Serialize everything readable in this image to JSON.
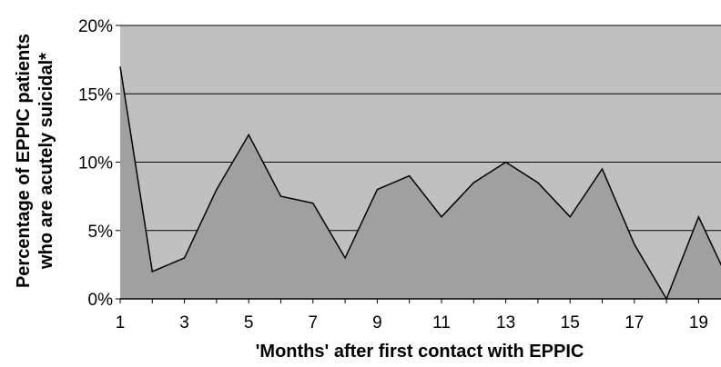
{
  "chart_data": {
    "type": "area",
    "title": "",
    "xlabel": "'Months' after first contact with EPPIC",
    "ylabel_line1": "Percentage of EPPIC patients",
    "ylabel_line2": "who are acutely suicidal*",
    "x": [
      1,
      2,
      3,
      4,
      5,
      6,
      7,
      8,
      9,
      10,
      11,
      12,
      13,
      14,
      15,
      16,
      17,
      18,
      19,
      20
    ],
    "values": [
      17,
      2,
      3,
      8,
      12,
      7.5,
      7,
      3,
      8,
      9,
      6,
      8.5,
      10,
      8.5,
      6,
      9.5,
      4,
      0,
      6,
      1
    ],
    "xlim": [
      1,
      20
    ],
    "ylim": [
      0,
      20
    ],
    "y_ticks": [
      0,
      5,
      10,
      15,
      20
    ],
    "y_tick_labels": [
      "0%",
      "5%",
      "10%",
      "15%",
      "20%"
    ],
    "x_tick_labels": [
      "1",
      "3",
      "5",
      "7",
      "9",
      "11",
      "13",
      "15",
      "17",
      "19"
    ],
    "x_tick_values": [
      1,
      3,
      5,
      7,
      9,
      11,
      13,
      15,
      17,
      19
    ],
    "grid": true,
    "legend": "none",
    "colors": {
      "plot_background": "#c0c0c0",
      "area_fill": "#a0a0a0",
      "line": "#000000",
      "grid": "#000000"
    }
  }
}
